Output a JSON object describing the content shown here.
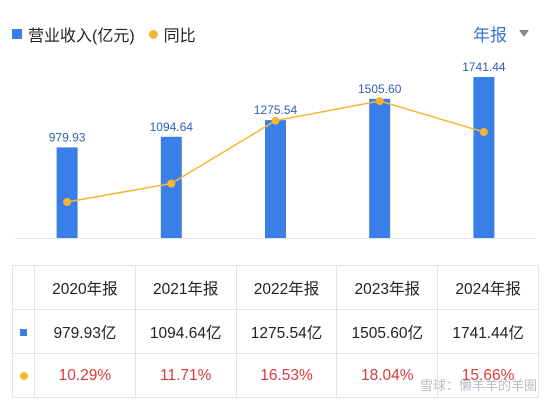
{
  "legend": {
    "revenue_label": "营业收入(亿元)",
    "yoy_label": "同比"
  },
  "period_selector": {
    "label": "年报"
  },
  "colors": {
    "bar": "#3a7ee8",
    "line": "#f5b731",
    "pct": "#d93a3a"
  },
  "chart_data": {
    "type": "bar",
    "categories": [
      "2020年报",
      "2021年报",
      "2022年报",
      "2023年报",
      "2024年报"
    ],
    "series": [
      {
        "name": "营业收入(亿元)",
        "type": "bar",
        "values": [
          979.93,
          1094.64,
          1275.54,
          1505.6,
          1741.44
        ],
        "labels": [
          "979.93",
          "1094.64",
          "1275.54",
          "1505.60",
          "1741.44"
        ]
      },
      {
        "name": "同比",
        "type": "line",
        "values": [
          10.29,
          11.71,
          16.53,
          18.04,
          15.66
        ]
      }
    ],
    "legend_position": "top-left",
    "grid": false
  },
  "table": {
    "headers": [
      "2020年报",
      "2021年报",
      "2022年报",
      "2023年报",
      "2024年报"
    ],
    "revenue": [
      "979.93亿",
      "1094.64亿",
      "1275.54亿",
      "1505.60亿",
      "1741.44亿"
    ],
    "yoy": [
      "10.29%",
      "11.71%",
      "16.53%",
      "18.04%",
      "15.66%"
    ]
  },
  "watermark": "雪球：懒羊羊的羊圈"
}
